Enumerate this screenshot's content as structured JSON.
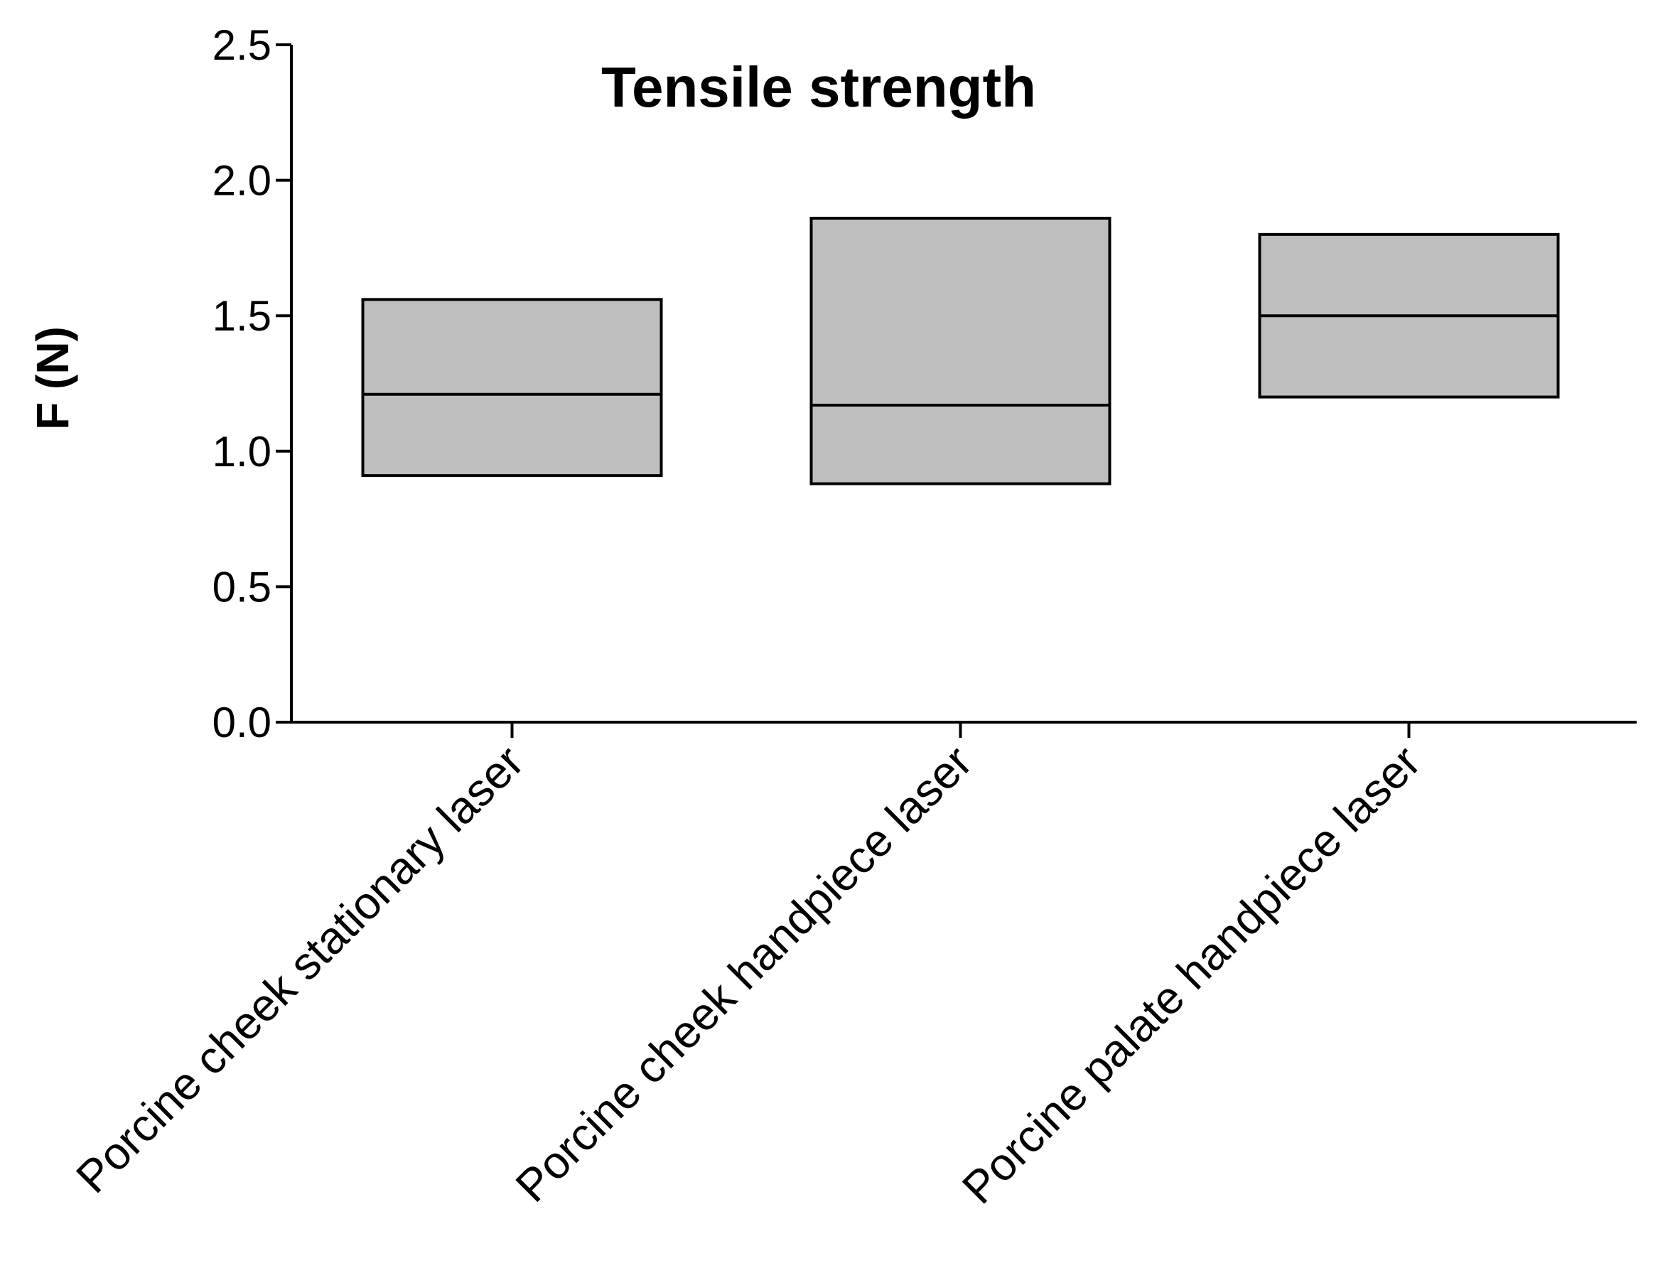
{
  "chart_data": {
    "type": "floating-bar",
    "title": "Tensile strength",
    "xlabel": "",
    "ylabel": "F (N)",
    "ylim": [
      0,
      2.5
    ],
    "yticks": [
      "0.0",
      "0.5",
      "1.0",
      "1.5",
      "2.0",
      "2.5"
    ],
    "ytick_values": [
      0,
      0.5,
      1.0,
      1.5,
      2.0,
      2.5
    ],
    "grid": false,
    "categories": [
      "Porcine cheek stationary laser",
      "Porcine cheek handpiece laser",
      "Porcine palate handpiece laser"
    ],
    "series": [
      {
        "min": 0.91,
        "median": 1.21,
        "max": 1.56
      },
      {
        "min": 0.88,
        "median": 1.17,
        "max": 1.86
      },
      {
        "min": 1.2,
        "median": 1.5,
        "max": 1.8
      }
    ],
    "colors": {
      "box_fill": "#bebebe",
      "stroke": "#000000"
    }
  }
}
